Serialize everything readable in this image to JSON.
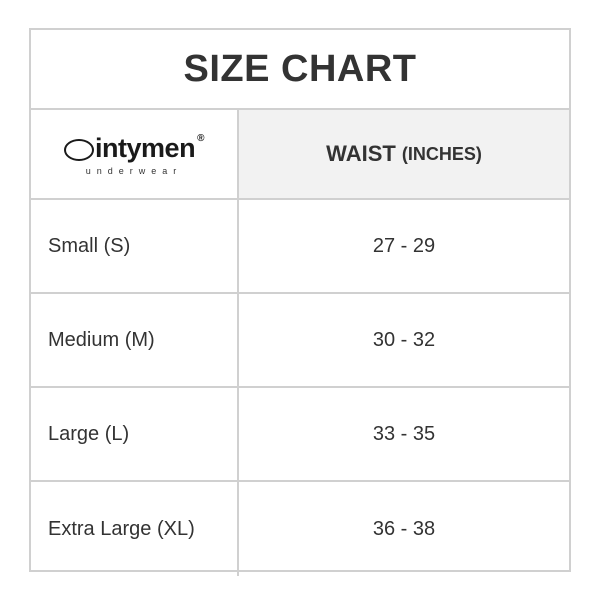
{
  "title": "SIZE CHART",
  "brand": {
    "name": "intymen",
    "tagline": "underwear",
    "registered": "®"
  },
  "header": {
    "measure": "WAIST",
    "unit": "(INCHES)"
  },
  "rows": [
    {
      "size": "Small (S)",
      "waist": "27 - 29"
    },
    {
      "size": "Medium (M)",
      "waist": "30 - 32"
    },
    {
      "size": "Large (L)",
      "waist": "33 - 35"
    },
    {
      "size": "Extra Large (XL)",
      "waist": "36 - 38"
    }
  ],
  "colors": {
    "border": "#d0d0d0",
    "header_bg": "#f2f2f2",
    "text": "#333333"
  }
}
